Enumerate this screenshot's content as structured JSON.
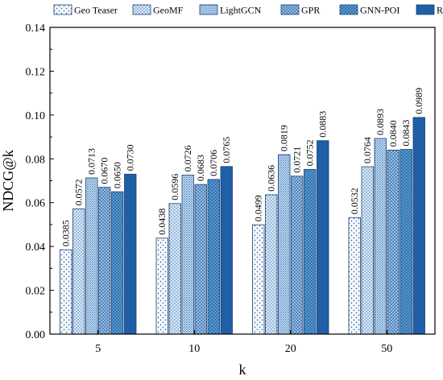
{
  "chart_data": {
    "type": "bar",
    "xlabel": "k",
    "ylabel": "NDCG@k",
    "categories": [
      "5",
      "10",
      "20",
      "50"
    ],
    "ylim": [
      0,
      0.14
    ],
    "yticks": [
      "0.00",
      "0.02",
      "0.04",
      "0.06",
      "0.08",
      "0.10",
      "0.12",
      "0.14"
    ],
    "grid": false,
    "legend_position": "top",
    "series": [
      {
        "name": "Geo Teaser",
        "values": [
          0.0385,
          0.0438,
          0.0499,
          0.0532
        ],
        "labels": [
          "0.0385",
          "0.0438",
          "0.0499",
          "0.0532"
        ],
        "color": "#f2f7fc",
        "pattern": "sparse-dots"
      },
      {
        "name": "GeoMF",
        "values": [
          0.0572,
          0.0596,
          0.0636,
          0.0764
        ],
        "labels": [
          "0.0572",
          "0.0596",
          "0.0636",
          "0.0764"
        ],
        "color": "#deebf7",
        "pattern": "dots"
      },
      {
        "name": "LightGCN",
        "values": [
          0.0713,
          0.0726,
          0.0819,
          0.0893
        ],
        "labels": [
          "0.0713",
          "0.0726",
          "0.0819",
          "0.0893"
        ],
        "color": "#9dc3e6",
        "pattern": "dense-dots"
      },
      {
        "name": "GPR",
        "values": [
          0.067,
          0.0683,
          0.0721,
          0.084
        ],
        "labels": [
          "0.0670",
          "0.0683",
          "0.0721",
          "0.0840"
        ],
        "color": "#6fa3d6",
        "pattern": "crosshatch"
      },
      {
        "name": "GNN-POI",
        "values": [
          0.065,
          0.0706,
          0.0752,
          0.0843
        ],
        "labels": [
          "0.0650",
          "0.0706",
          "0.0752",
          "0.0843"
        ],
        "color": "#2e75b6",
        "pattern": "light-dots"
      },
      {
        "name": "RST-GCN",
        "values": [
          0.073,
          0.0765,
          0.0883,
          0.0989
        ],
        "labels": [
          "0.0730",
          "0.0765",
          "0.0883",
          "0.0989"
        ],
        "color": "#1f5fa8",
        "pattern": "solid"
      }
    ]
  }
}
